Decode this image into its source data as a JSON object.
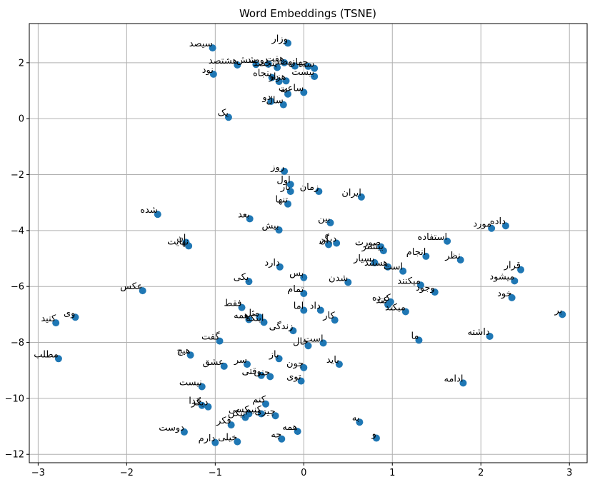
{
  "chart_data": {
    "type": "scatter",
    "title": "Word Embeddings (TSNE)",
    "xlabel": "",
    "ylabel": "",
    "xlim": [
      -3.1,
      3.2
    ],
    "ylim": [
      -12.3,
      3.4
    ],
    "xticks": [
      -3,
      -2,
      -1,
      0,
      1,
      2,
      3
    ],
    "yticks": [
      2,
      0,
      -2,
      -4,
      -6,
      -8,
      -10,
      -12
    ],
    "grid": true,
    "marker_color": "#1f77b4",
    "points": [
      {
        "x": -0.18,
        "y": 2.7,
        "label": "وزار"
      },
      {
        "x": -1.03,
        "y": 2.53,
        "label": "سیصد"
      },
      {
        "x": -0.75,
        "y": 1.92,
        "label": "هشتصد"
      },
      {
        "x": -0.54,
        "y": 1.94,
        "label": "شش"
      },
      {
        "x": -0.4,
        "y": 1.95,
        "label": "دوصد"
      },
      {
        "x": -0.22,
        "y": 2.0,
        "label": "هفت"
      },
      {
        "x": -0.3,
        "y": 1.83,
        "label": "پنجصد"
      },
      {
        "x": -0.1,
        "y": 1.88,
        "label": "نهصد"
      },
      {
        "x": 0.05,
        "y": 1.87,
        "label": "چهار"
      },
      {
        "x": 0.12,
        "y": 1.8,
        "label": "سه"
      },
      {
        "x": -1.02,
        "y": 1.59,
        "label": "نود"
      },
      {
        "x": -0.36,
        "y": 1.47,
        "label": "پنجاه"
      },
      {
        "x": 0.12,
        "y": 1.51,
        "label": "بیست"
      },
      {
        "x": -0.28,
        "y": 1.33,
        "label": "ده"
      },
      {
        "x": -0.2,
        "y": 1.35,
        "label": "هزار"
      },
      {
        "x": -0.18,
        "y": 0.88,
        "label": "نه"
      },
      {
        "x": 0.0,
        "y": 0.94,
        "label": "ساعت"
      },
      {
        "x": -0.37,
        "y": 0.62,
        "label": "دو"
      },
      {
        "x": -0.23,
        "y": 0.5,
        "label": "سال"
      },
      {
        "x": -0.85,
        "y": 0.05,
        "label": "یک"
      },
      {
        "x": -0.22,
        "y": -1.88,
        "label": "روز"
      },
      {
        "x": -0.15,
        "y": -2.35,
        "label": "اول"
      },
      {
        "x": -0.15,
        "y": -2.6,
        "label": "بار"
      },
      {
        "x": 0.17,
        "y": -2.6,
        "label": "زمان"
      },
      {
        "x": 0.65,
        "y": -2.8,
        "label": "ایران"
      },
      {
        "x": -0.18,
        "y": -3.05,
        "label": "تنها"
      },
      {
        "x": -1.65,
        "y": -3.42,
        "label": "شده"
      },
      {
        "x": -0.61,
        "y": -3.58,
        "label": "بعد"
      },
      {
        "x": 0.3,
        "y": -3.72,
        "label": "بین"
      },
      {
        "x": -0.28,
        "y": -3.98,
        "label": "بیش"
      },
      {
        "x": 2.28,
        "y": -3.83,
        "label": "داده"
      },
      {
        "x": 2.12,
        "y": -3.92,
        "label": "مورد"
      },
      {
        "x": -1.33,
        "y": -4.42,
        "label": "ان"
      },
      {
        "x": -1.3,
        "y": -4.55,
        "label": "نهایت"
      },
      {
        "x": 0.28,
        "y": -4.5,
        "label": "آن"
      },
      {
        "x": 0.37,
        "y": -4.45,
        "label": "دیگر"
      },
      {
        "x": 0.87,
        "y": -4.58,
        "label": "صورت"
      },
      {
        "x": 0.9,
        "y": -4.72,
        "label": "بیشتر"
      },
      {
        "x": 1.62,
        "y": -4.38,
        "label": "استفاده"
      },
      {
        "x": 1.38,
        "y": -4.92,
        "label": "انجام"
      },
      {
        "x": 1.77,
        "y": -5.05,
        "label": "نظر"
      },
      {
        "x": 0.8,
        "y": -5.15,
        "label": "بسیار"
      },
      {
        "x": 0.95,
        "y": -5.3,
        "label": "هستند"
      },
      {
        "x": 1.12,
        "y": -5.45,
        "label": "است"
      },
      {
        "x": 2.45,
        "y": -5.4,
        "label": "قرار"
      },
      {
        "x": 2.38,
        "y": -5.8,
        "label": "میشود"
      },
      {
        "x": -0.27,
        "y": -5.3,
        "label": "دارد"
      },
      {
        "x": 0.0,
        "y": -5.68,
        "label": "بس"
      },
      {
        "x": -0.62,
        "y": -5.82,
        "label": "یکی"
      },
      {
        "x": 0.5,
        "y": -5.85,
        "label": "شدن"
      },
      {
        "x": 1.32,
        "y": -5.95,
        "label": "میکنند"
      },
      {
        "x": -1.82,
        "y": -6.15,
        "label": "عکس"
      },
      {
        "x": 0.0,
        "y": -6.25,
        "label": "تمام"
      },
      {
        "x": 1.48,
        "y": -6.2,
        "label": "وجود"
      },
      {
        "x": 2.35,
        "y": -6.4,
        "label": "خود"
      },
      {
        "x": 0.98,
        "y": -6.55,
        "label": "کرده"
      },
      {
        "x": 0.95,
        "y": -6.65,
        "label": "کند"
      },
      {
        "x": 1.15,
        "y": -6.9,
        "label": "میکند"
      },
      {
        "x": -0.7,
        "y": -6.75,
        "label": "فقط"
      },
      {
        "x": 0.0,
        "y": -6.85,
        "label": "اما"
      },
      {
        "x": 0.19,
        "y": -6.85,
        "label": "داد"
      },
      {
        "x": 0.35,
        "y": -7.2,
        "label": "کار"
      },
      {
        "x": 2.92,
        "y": -7.0,
        "label": "بر"
      },
      {
        "x": -0.62,
        "y": -7.18,
        "label": "همه"
      },
      {
        "x": -0.5,
        "y": -7.1,
        "label": "مثل"
      },
      {
        "x": -0.45,
        "y": -7.28,
        "label": "اینکه"
      },
      {
        "x": -2.58,
        "y": -7.1,
        "label": "وی"
      },
      {
        "x": -2.8,
        "y": -7.3,
        "label": "کنید"
      },
      {
        "x": -0.12,
        "y": -7.58,
        "label": "زندگی"
      },
      {
        "x": -0.95,
        "y": -7.95,
        "label": "گفت"
      },
      {
        "x": 1.3,
        "y": -7.92,
        "label": "ما"
      },
      {
        "x": 2.1,
        "y": -7.78,
        "label": "داشته"
      },
      {
        "x": 0.05,
        "y": -8.12,
        "label": "حال"
      },
      {
        "x": 0.22,
        "y": -8.02,
        "label": "است"
      },
      {
        "x": -1.28,
        "y": -8.45,
        "label": "هیچ"
      },
      {
        "x": -2.77,
        "y": -8.58,
        "label": "مطلب"
      },
      {
        "x": -0.28,
        "y": -8.58,
        "label": "باز"
      },
      {
        "x": 0.4,
        "y": -8.78,
        "label": "باید"
      },
      {
        "x": -0.9,
        "y": -8.85,
        "label": "عشق"
      },
      {
        "x": -0.64,
        "y": -8.78,
        "label": "سر"
      },
      {
        "x": 0.0,
        "y": -8.9,
        "label": "چون"
      },
      {
        "x": -0.48,
        "y": -9.18,
        "label": "وقتی"
      },
      {
        "x": -0.38,
        "y": -9.22,
        "label": "حتی"
      },
      {
        "x": -0.03,
        "y": -9.38,
        "label": "توی"
      },
      {
        "x": 1.8,
        "y": -9.45,
        "label": "ادامه"
      },
      {
        "x": -1.15,
        "y": -9.58,
        "label": "نیست"
      },
      {
        "x": -1.15,
        "y": -10.25,
        "label": "خدا"
      },
      {
        "x": -1.08,
        "y": -10.3,
        "label": "دیگر"
      },
      {
        "x": -0.43,
        "y": -10.2,
        "label": "کنم"
      },
      {
        "x": -0.62,
        "y": -10.55,
        "label": "کسی"
      },
      {
        "x": -0.48,
        "y": -10.55,
        "label": "کنیم"
      },
      {
        "x": -0.66,
        "y": -10.68,
        "label": "بیکن"
      },
      {
        "x": -0.32,
        "y": -10.62,
        "label": "چیزی"
      },
      {
        "x": -0.82,
        "y": -10.95,
        "label": "فکر"
      },
      {
        "x": 0.63,
        "y": -10.85,
        "label": "به"
      },
      {
        "x": -1.35,
        "y": -11.2,
        "label": "دوست"
      },
      {
        "x": -0.07,
        "y": -11.18,
        "label": "همه"
      },
      {
        "x": -1.0,
        "y": -11.58,
        "label": "دارم"
      },
      {
        "x": -0.75,
        "y": -11.55,
        "label": "خیلی"
      },
      {
        "x": -0.25,
        "y": -11.45,
        "label": "چه"
      },
      {
        "x": 0.82,
        "y": -11.42,
        "label": "و"
      }
    ]
  }
}
